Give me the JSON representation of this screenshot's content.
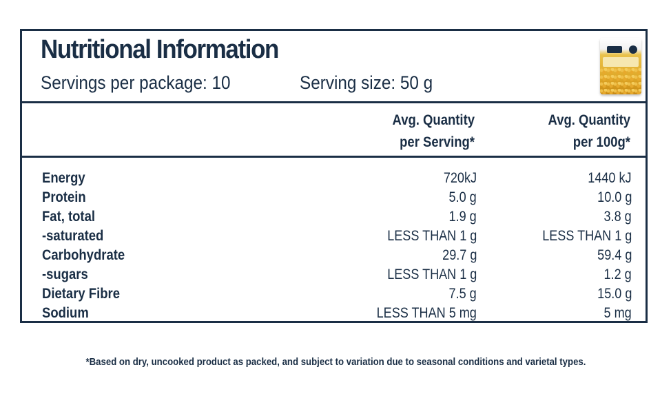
{
  "panel": {
    "title": "Nutritional Information",
    "servings_per_package": "Servings per package: 10",
    "serving_size": "Serving size: 50 g",
    "product_image": "split-peas-package"
  },
  "columns": {
    "serving_line1": "Avg. Quantity",
    "serving_line2": "per Serving*",
    "per100_line1": "Avg. Quantity",
    "per100_line2": "per 100g*"
  },
  "nutrients": [
    {
      "name": "Energy",
      "per_serving": "720kJ",
      "per_100g": "1440 kJ"
    },
    {
      "name": "Protein",
      "per_serving": "5.0 g",
      "per_100g": "10.0 g"
    },
    {
      "name": "Fat, total",
      "per_serving": "1.9 g",
      "per_100g": "3.8 g"
    },
    {
      "name": "-saturated",
      "per_serving": "LESS THAN 1 g",
      "per_100g": "LESS THAN 1 g"
    },
    {
      "name": "Carbohydrate",
      "per_serving": "29.7 g",
      "per_100g": "59.4 g"
    },
    {
      "name": "-sugars",
      "per_serving": "LESS THAN 1 g",
      "per_100g": "1.2 g"
    },
    {
      "name": "Dietary Fibre",
      "per_serving": "7.5 g",
      "per_100g": "15.0 g"
    },
    {
      "name": "Sodium",
      "per_serving": "LESS THAN 5 mg",
      "per_100g": "5 mg"
    }
  ],
  "footnote": "*Based on dry, uncooked product as packed, and subject to variation due to seasonal conditions and varietal types.",
  "colors": {
    "ink": "#1a2e45",
    "background": "#ffffff"
  }
}
